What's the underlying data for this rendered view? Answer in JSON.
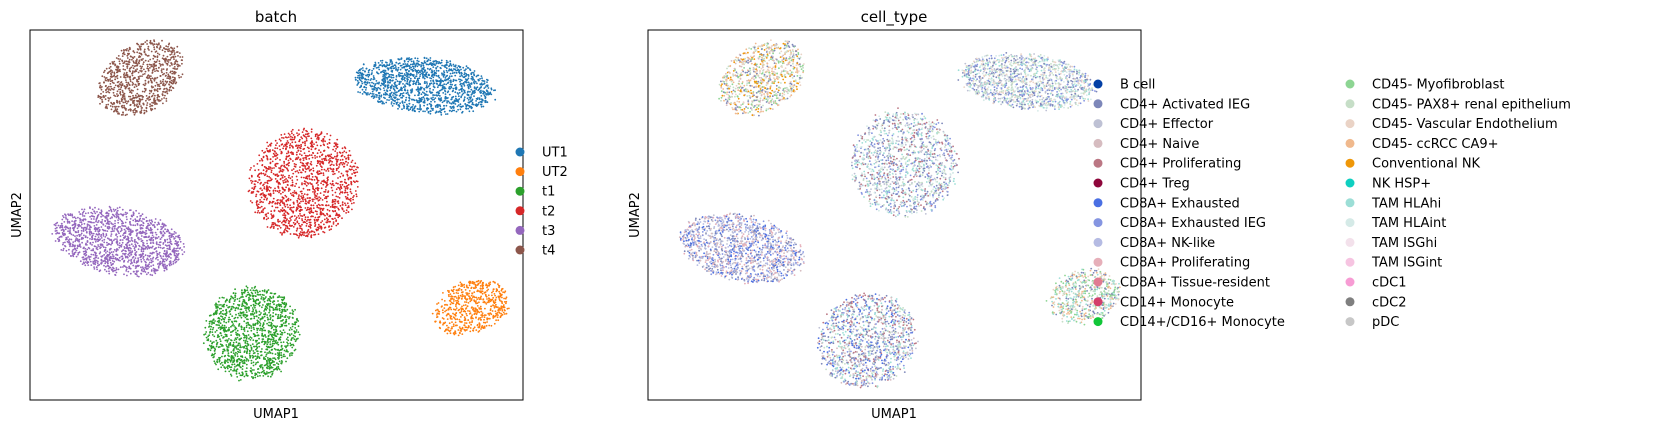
{
  "chart_data": [
    {
      "type": "scatter",
      "title": "batch",
      "xlabel": "UMAP1",
      "ylabel": "UMAP2",
      "ticks": "none",
      "grid": false,
      "legend_position": "right",
      "legend": [
        {
          "label": "UT1",
          "color": "#1f77b4"
        },
        {
          "label": "UT2",
          "color": "#ff7f0e"
        },
        {
          "label": "t1",
          "color": "#2ca02c"
        },
        {
          "label": "t2",
          "color": "#d62728"
        },
        {
          "label": "t3",
          "color": "#9467bd"
        },
        {
          "label": "t4",
          "color": "#8c564b"
        }
      ],
      "clusters": [
        {
          "batch": "UT1",
          "cx": 0.8,
          "cy": 0.85,
          "rx": 0.145,
          "ry": 0.075,
          "rot": 6,
          "n": 1400
        },
        {
          "batch": "UT2",
          "cx": 0.895,
          "cy": 0.25,
          "rx": 0.055,
          "ry": 0.105,
          "rot": 72,
          "n": 600
        },
        {
          "batch": "t1",
          "cx": 0.45,
          "cy": 0.18,
          "rx": 0.095,
          "ry": 0.13,
          "rot": 60,
          "n": 1300
        },
        {
          "batch": "t2",
          "cx": 0.555,
          "cy": 0.585,
          "rx": 0.11,
          "ry": 0.15,
          "rot": 62,
          "n": 1400
        },
        {
          "batch": "t3",
          "cx": 0.18,
          "cy": 0.43,
          "rx": 0.135,
          "ry": 0.09,
          "rot": 10,
          "n": 1400
        },
        {
          "batch": "t4",
          "cx": 0.225,
          "cy": 0.87,
          "rx": 0.095,
          "ry": 0.09,
          "rot": -35,
          "n": 900
        }
      ]
    },
    {
      "type": "scatter",
      "title": "cell_type",
      "xlabel": "UMAP1",
      "ylabel": "UMAP2",
      "ticks": "none",
      "grid": false,
      "legend_position": "right",
      "legend": [
        {
          "label": "B cell",
          "color": "#023fa5"
        },
        {
          "label": "CD4+ Activated IEG",
          "color": "#7d87b9"
        },
        {
          "label": "CD4+ Effector",
          "color": "#bec1d4"
        },
        {
          "label": "CD4+ Naive",
          "color": "#d6bcc0"
        },
        {
          "label": "CD4+ Proliferating",
          "color": "#bb7784"
        },
        {
          "label": "CD4+ Treg",
          "color": "#8e063b"
        },
        {
          "label": "CD8A+ Exhausted",
          "color": "#4a6fe3"
        },
        {
          "label": "CD8A+ Exhausted IEG",
          "color": "#8595e1"
        },
        {
          "label": "CD8A+ NK-like",
          "color": "#b5bbe3"
        },
        {
          "label": "CD8A+ Proliferating",
          "color": "#e6afb9"
        },
        {
          "label": "CD8A+ Tissue-resident",
          "color": "#e07b91"
        },
        {
          "label": "CD14+ Monocyte",
          "color": "#d33f6a"
        },
        {
          "label": "CD14+/CD16+ Monocyte",
          "color": "#11c638"
        },
        {
          "label": "CD45- Myofibroblast",
          "color": "#8dd593"
        },
        {
          "label": "CD45- PAX8+ renal epithelium",
          "color": "#c6dec7"
        },
        {
          "label": "CD45- Vascular Endothelium",
          "color": "#ead3c6"
        },
        {
          "label": "CD45- ccRCC CA9+",
          "color": "#f0b98d"
        },
        {
          "label": "Conventional NK",
          "color": "#ef9708"
        },
        {
          "label": "NK HSP+",
          "color": "#0fcfc0"
        },
        {
          "label": "TAM HLAhi",
          "color": "#9cded6"
        },
        {
          "label": "TAM HLAint",
          "color": "#d5eae7"
        },
        {
          "label": "TAM ISGhi",
          "color": "#f3e1eb"
        },
        {
          "label": "TAM ISGint",
          "color": "#f6c4e1"
        },
        {
          "label": "cDC1",
          "color": "#f79cd4"
        },
        {
          "label": "cDC2",
          "color": "#7f7f7f"
        },
        {
          "label": "pDC",
          "color": "#c7c7c7"
        }
      ],
      "clusters": [
        {
          "mix": [
            "#7d87b9",
            "#bec1d4",
            "#ead3c6",
            "#c6dec7",
            "#d5eae7",
            "#9cded6",
            "#8595e1"
          ],
          "cx": 0.77,
          "cy": 0.86,
          "rx": 0.14,
          "ry": 0.075,
          "rot": 6,
          "n": 1400
        },
        {
          "mix": [
            "#4a6fe3",
            "#8595e1",
            "#b5bbe3",
            "#7d87b9",
            "#e6afb9",
            "#bec1d4",
            "#d6bcc0"
          ],
          "cx": 0.19,
          "cy": 0.41,
          "rx": 0.13,
          "ry": 0.09,
          "rot": 12,
          "n": 1400
        },
        {
          "mix": [
            "#9cded6",
            "#c6dec7",
            "#d5eae7",
            "#7d87b9",
            "#bb7784",
            "#bec1d4",
            "#8595e1"
          ],
          "cx": 0.52,
          "cy": 0.64,
          "rx": 0.11,
          "ry": 0.145,
          "rot": 62,
          "n": 1400
        },
        {
          "mix": [
            "#f0b98d",
            "#ef9708",
            "#ead3c6",
            "#8dd593",
            "#7d87b9",
            "#c6dec7",
            "#d6bcc0"
          ],
          "cx": 0.23,
          "cy": 0.87,
          "rx": 0.095,
          "ry": 0.09,
          "rot": -35,
          "n": 900
        },
        {
          "mix": [
            "#7d87b9",
            "#4a6fe3",
            "#bec1d4",
            "#d6bcc0",
            "#9cded6",
            "#8595e1",
            "#c6dec7",
            "#bb7784"
          ],
          "cx": 0.445,
          "cy": 0.16,
          "rx": 0.095,
          "ry": 0.135,
          "rot": 60,
          "n": 1300
        },
        {
          "mix": [
            "#8dd593",
            "#c6dec7",
            "#ead3c6",
            "#7d87b9",
            "#9cded6",
            "#f0b98d"
          ],
          "cx": 0.885,
          "cy": 0.28,
          "rx": 0.055,
          "ry": 0.1,
          "rot": 75,
          "n": 600
        }
      ]
    }
  ]
}
